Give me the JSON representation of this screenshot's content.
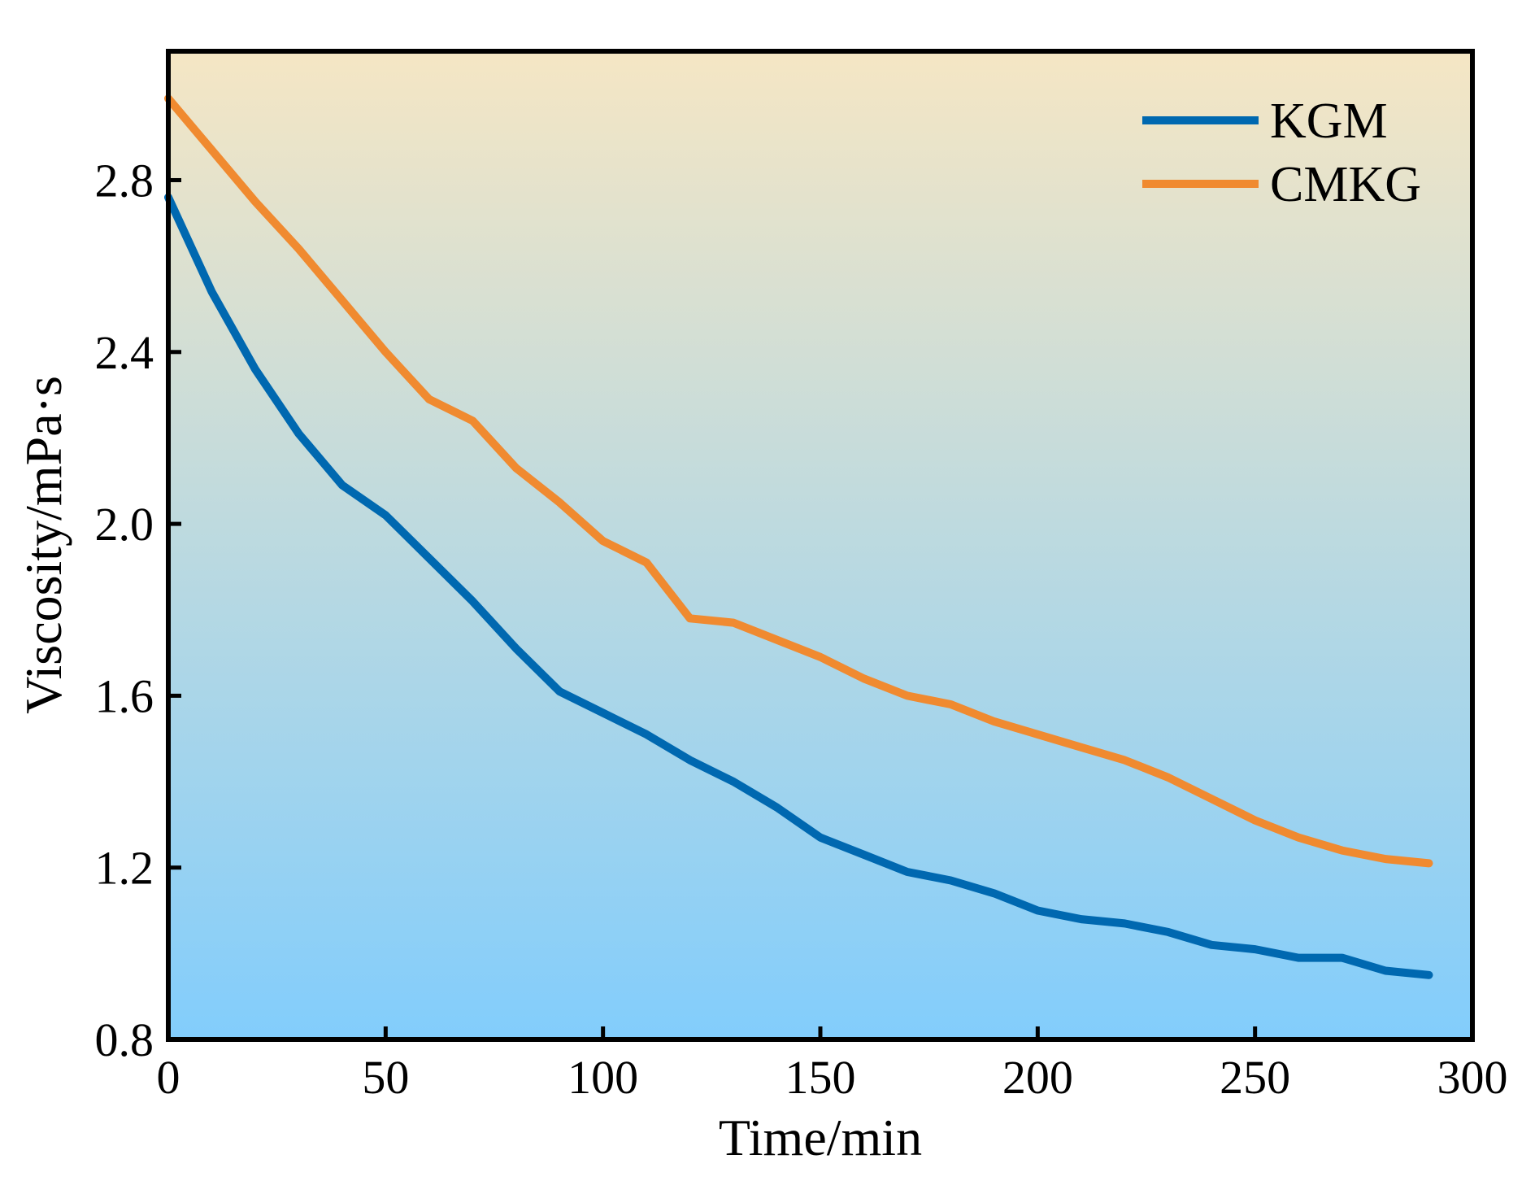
{
  "chart_data": {
    "type": "line",
    "title": "",
    "xlabel": "Time/min",
    "ylabel": "Viscosity/mPa·s",
    "xlim": [
      0,
      300
    ],
    "ylim": [
      0.8,
      3.1
    ],
    "xticks": [
      0,
      50,
      100,
      150,
      200,
      250,
      300
    ],
    "xtick_labels": [
      "0",
      "50",
      "100",
      "150",
      "200",
      "250",
      "300"
    ],
    "yticks": [
      0.8,
      1.2,
      1.6,
      2.0,
      2.4,
      2.8
    ],
    "ytick_labels": [
      "0.8",
      "1.2",
      "1.6",
      "2.0",
      "2.4",
      "2.8"
    ],
    "grid": false,
    "legend_position": "top-right",
    "background_gradient": {
      "top": "#f5e6c4",
      "bottom": "#82cdfc"
    },
    "x": [
      0,
      10,
      20,
      30,
      40,
      50,
      60,
      70,
      80,
      90,
      100,
      110,
      120,
      130,
      140,
      150,
      160,
      170,
      180,
      190,
      200,
      210,
      220,
      230,
      240,
      250,
      260,
      270,
      280,
      290
    ],
    "series": [
      {
        "name": "KGM",
        "color": "#0068b0",
        "values": [
          2.76,
          2.54,
          2.36,
          2.21,
          2.09,
          2.02,
          1.92,
          1.82,
          1.71,
          1.61,
          1.56,
          1.51,
          1.45,
          1.4,
          1.34,
          1.27,
          1.23,
          1.19,
          1.17,
          1.14,
          1.1,
          1.08,
          1.07,
          1.05,
          1.02,
          1.01,
          0.99,
          0.99,
          0.96,
          0.95
        ]
      },
      {
        "name": "CMKG",
        "color": "#f08a30",
        "values": [
          2.99,
          2.87,
          2.75,
          2.64,
          2.52,
          2.4,
          2.29,
          2.24,
          2.13,
          2.05,
          1.96,
          1.91,
          1.78,
          1.77,
          1.73,
          1.69,
          1.64,
          1.6,
          1.58,
          1.54,
          1.51,
          1.48,
          1.45,
          1.41,
          1.36,
          1.31,
          1.27,
          1.24,
          1.22,
          1.21
        ]
      }
    ]
  }
}
